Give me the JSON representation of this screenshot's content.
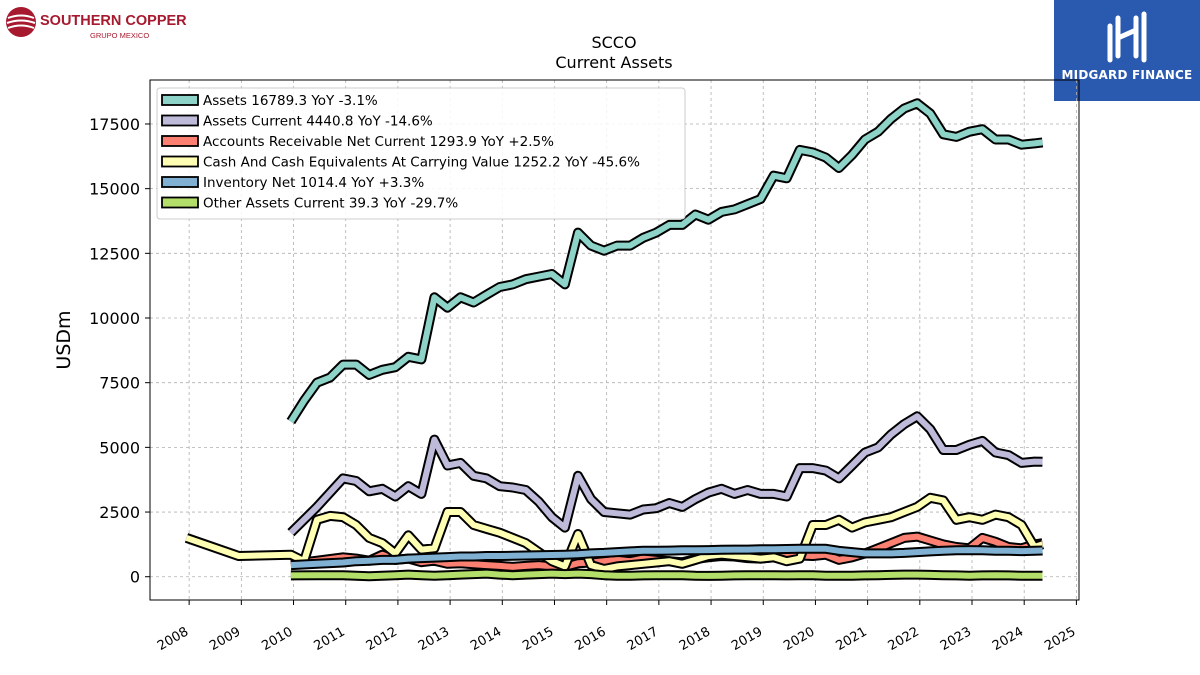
{
  "logos": {
    "left": {
      "name": "SOUTHERN COPPER",
      "sub": "GRUPO MEXICO",
      "color": "#a6192e"
    },
    "right": {
      "name": "MIDGARD FINANCE",
      "bg": "#2a59b0"
    }
  },
  "chart_data": {
    "type": "line",
    "title": "SCCO",
    "subtitle": "Current  Assets",
    "ylabel": "USDm",
    "xlabel": "",
    "xlim": [
      2007.25,
      2025.05
    ],
    "ylim": [
      -900,
      19200
    ],
    "x_ticks": [
      2008,
      2009,
      2010,
      2011,
      2012,
      2013,
      2014,
      2015,
      2016,
      2017,
      2018,
      2019,
      2020,
      2021,
      2022,
      2023,
      2024,
      2025
    ],
    "y_ticks": [
      0,
      2500,
      5000,
      7500,
      10000,
      12500,
      15000,
      17500
    ],
    "grid": true,
    "legend_position": "top-left",
    "series": [
      {
        "name": "Assets",
        "legend": "Assets  16789.3 YoY -3.1%",
        "color": "#8dd3c7",
        "x": [
          2009.95,
          2010.2,
          2010.45,
          2010.7,
          2010.95,
          2011.2,
          2011.45,
          2011.7,
          2011.95,
          2012.2,
          2012.45,
          2012.7,
          2012.95,
          2013.2,
          2013.45,
          2013.7,
          2013.95,
          2014.2,
          2014.45,
          2014.7,
          2014.95,
          2015.2,
          2015.45,
          2015.7,
          2015.95,
          2016.2,
          2016.45,
          2016.7,
          2016.95,
          2017.2,
          2017.45,
          2017.7,
          2017.95,
          2018.2,
          2018.45,
          2018.7,
          2018.95,
          2019.2,
          2019.45,
          2019.7,
          2019.95,
          2020.2,
          2020.45,
          2020.7,
          2020.95,
          2021.2,
          2021.45,
          2021.7,
          2021.95,
          2022.2,
          2022.45,
          2022.7,
          2022.95,
          2023.2,
          2023.45,
          2023.7,
          2023.95,
          2024.2,
          2024.35
        ],
        "y": [
          6000,
          6800,
          7500,
          7700,
          8200,
          8200,
          7800,
          8000,
          8100,
          8500,
          8400,
          10800,
          10400,
          10800,
          10600,
          10900,
          11200,
          11300,
          11500,
          11600,
          11700,
          11300,
          13300,
          12800,
          12600,
          12800,
          12800,
          13100,
          13300,
          13600,
          13600,
          14000,
          13800,
          14100,
          14200,
          14400,
          14600,
          15500,
          15400,
          16500,
          16400,
          16200,
          15800,
          16300,
          16900,
          17200,
          17700,
          18100,
          18300,
          17900,
          17100,
          17000,
          17200,
          17300,
          16900,
          16900,
          16700,
          16750,
          16789
        ]
      },
      {
        "name": "Assets Current",
        "legend": "Assets Current  4440.8 YoY -14.6%",
        "color": "#bebada",
        "x": [
          2009.95,
          2010.45,
          2010.95,
          2011.2,
          2011.45,
          2011.7,
          2011.95,
          2012.2,
          2012.45,
          2012.7,
          2012.95,
          2013.2,
          2013.45,
          2013.7,
          2013.95,
          2014.2,
          2014.45,
          2014.7,
          2014.95,
          2015.2,
          2015.45,
          2015.7,
          2015.95,
          2016.2,
          2016.45,
          2016.7,
          2016.95,
          2017.2,
          2017.45,
          2017.7,
          2017.95,
          2018.2,
          2018.45,
          2018.7,
          2018.95,
          2019.2,
          2019.45,
          2019.7,
          2019.95,
          2020.2,
          2020.45,
          2020.7,
          2020.95,
          2021.2,
          2021.45,
          2021.7,
          2021.95,
          2022.2,
          2022.45,
          2022.7,
          2022.95,
          2023.2,
          2023.45,
          2023.7,
          2023.95,
          2024.2,
          2024.35
        ],
        "y": [
          1700,
          2700,
          3800,
          3700,
          3300,
          3400,
          3100,
          3500,
          3200,
          5300,
          4300,
          4400,
          3900,
          3800,
          3500,
          3450,
          3350,
          2900,
          2300,
          1900,
          3900,
          3000,
          2500,
          2450,
          2400,
          2600,
          2650,
          2850,
          2700,
          3000,
          3250,
          3400,
          3200,
          3350,
          3200,
          3200,
          3100,
          4200,
          4200,
          4100,
          3800,
          4300,
          4800,
          5000,
          5500,
          5900,
          6200,
          5700,
          4900,
          4900,
          5100,
          5250,
          4800,
          4700,
          4400,
          4450,
          4441
        ]
      },
      {
        "name": "Accounts Receivable Net Current",
        "legend": "Accounts Receivable Net Current  1293.9 YoY +2.5%",
        "color": "#fb8072",
        "x": [
          2009.95,
          2010.45,
          2010.95,
          2011.2,
          2011.45,
          2011.7,
          2011.95,
          2012.2,
          2012.45,
          2012.7,
          2012.95,
          2013.2,
          2013.45,
          2013.7,
          2013.95,
          2014.2,
          2014.45,
          2014.7,
          2014.95,
          2015.2,
          2015.45,
          2015.7,
          2015.95,
          2016.2,
          2016.45,
          2016.7,
          2016.95,
          2017.2,
          2017.45,
          2017.7,
          2017.95,
          2018.2,
          2018.45,
          2018.7,
          2018.95,
          2019.2,
          2019.45,
          2019.7,
          2019.95,
          2020.2,
          2020.45,
          2020.7,
          2020.95,
          2021.2,
          2021.45,
          2021.7,
          2021.95,
          2022.2,
          2022.45,
          2022.7,
          2022.95,
          2023.2,
          2023.45,
          2023.7,
          2023.95,
          2024.2,
          2024.35
        ],
        "y": [
          500,
          620,
          750,
          700,
          620,
          850,
          650,
          700,
          560,
          620,
          500,
          520,
          480,
          450,
          420,
          380,
          420,
          450,
          400,
          380,
          520,
          550,
          600,
          650,
          600,
          700,
          650,
          600,
          560,
          680,
          750,
          800,
          780,
          720,
          700,
          750,
          800,
          820,
          800,
          850,
          650,
          750,
          900,
          1100,
          1300,
          1500,
          1550,
          1400,
          1250,
          1150,
          1100,
          1500,
          1350,
          1150,
          1100,
          1250,
          1294
        ]
      },
      {
        "name": "Cash And Cash Equivalents At Carrying Value",
        "legend": "Cash And Cash Equivalents At Carrying Value  1252.2 YoY -45.6%",
        "color": "#ffffb3",
        "x": [
          2007.95,
          2008.95,
          2009.95,
          2010.2,
          2010.45,
          2010.7,
          2010.95,
          2011.2,
          2011.45,
          2011.7,
          2011.95,
          2012.2,
          2012.45,
          2012.7,
          2012.95,
          2013.2,
          2013.45,
          2013.7,
          2013.95,
          2014.2,
          2014.45,
          2014.7,
          2014.95,
          2015.2,
          2015.45,
          2015.7,
          2015.95,
          2016.2,
          2016.45,
          2016.7,
          2016.95,
          2017.2,
          2017.45,
          2017.7,
          2017.95,
          2018.2,
          2018.45,
          2018.7,
          2018.95,
          2019.2,
          2019.45,
          2019.7,
          2019.95,
          2020.2,
          2020.45,
          2020.7,
          2020.95,
          2021.2,
          2021.45,
          2021.7,
          2021.95,
          2022.2,
          2022.45,
          2022.7,
          2022.95,
          2023.2,
          2023.45,
          2023.7,
          2023.95,
          2024.2,
          2024.35
        ],
        "y": [
          1500,
          800,
          850,
          600,
          2200,
          2350,
          2300,
          2000,
          1500,
          1300,
          900,
          1600,
          1050,
          1100,
          2500,
          2500,
          2000,
          1850,
          1700,
          1500,
          1300,
          950,
          600,
          400,
          1650,
          450,
          300,
          400,
          450,
          500,
          550,
          600,
          500,
          650,
          800,
          850,
          800,
          750,
          700,
          750,
          600,
          700,
          2000,
          2000,
          2200,
          1900,
          2100,
          2200,
          2300,
          2500,
          2700,
          3050,
          2950,
          2200,
          2300,
          2200,
          2400,
          2300,
          2000,
          1150,
          1252
        ]
      },
      {
        "name": "Inventory Net",
        "legend": "Inventory Net  1014.4 YoY +3.3%",
        "color": "#80b1d3",
        "x": [
          2009.95,
          2010.45,
          2010.95,
          2011.2,
          2011.45,
          2011.7,
          2011.95,
          2012.2,
          2012.45,
          2012.7,
          2012.95,
          2013.2,
          2013.45,
          2013.7,
          2013.95,
          2014.2,
          2014.45,
          2014.7,
          2014.95,
          2015.2,
          2015.45,
          2015.7,
          2015.95,
          2016.2,
          2016.45,
          2016.7,
          2016.95,
          2017.2,
          2017.45,
          2017.7,
          2017.95,
          2018.2,
          2018.45,
          2018.7,
          2018.95,
          2019.2,
          2019.45,
          2019.7,
          2019.95,
          2020.2,
          2020.45,
          2020.7,
          2020.95,
          2021.2,
          2021.45,
          2021.7,
          2021.95,
          2022.2,
          2022.45,
          2022.7,
          2022.95,
          2023.2,
          2023.45,
          2023.7,
          2023.95,
          2024.2,
          2024.35
        ],
        "y": [
          450,
          500,
          550,
          600,
          620,
          650,
          650,
          700,
          720,
          740,
          760,
          780,
          780,
          800,
          800,
          810,
          820,
          830,
          840,
          850,
          870,
          900,
          920,
          950,
          980,
          1000,
          1000,
          1010,
          1020,
          1020,
          1030,
          1040,
          1050,
          1050,
          1060,
          1060,
          1070,
          1080,
          1080,
          1080,
          1000,
          950,
          900,
          900,
          900,
          920,
          950,
          980,
          1000,
          1020,
          1030,
          1020,
          1000,
          1000,
          990,
          1000,
          1014
        ]
      },
      {
        "name": "Other Assets Current",
        "legend": "Other Assets Current  39.3 YoY -29.7%",
        "color": "#b3de69",
        "x": [
          2009.95,
          2010.45,
          2010.95,
          2011.2,
          2011.45,
          2011.7,
          2011.95,
          2012.2,
          2012.45,
          2012.7,
          2012.95,
          2013.2,
          2013.45,
          2013.7,
          2013.95,
          2014.2,
          2014.45,
          2014.7,
          2014.95,
          2015.2,
          2015.45,
          2015.7,
          2015.95,
          2016.2,
          2016.45,
          2016.7,
          2016.95,
          2017.2,
          2017.45,
          2017.7,
          2017.95,
          2018.2,
          2018.45,
          2018.7,
          2018.95,
          2019.2,
          2019.45,
          2019.7,
          2019.95,
          2020.2,
          2020.45,
          2020.7,
          2020.95,
          2021.2,
          2021.45,
          2021.7,
          2021.95,
          2022.2,
          2022.45,
          2022.7,
          2022.95,
          2023.2,
          2023.45,
          2023.7,
          2023.95,
          2024.2,
          2024.35
        ],
        "y": [
          50,
          60,
          60,
          40,
          20,
          40,
          60,
          80,
          60,
          40,
          60,
          80,
          100,
          120,
          80,
          60,
          80,
          100,
          120,
          100,
          120,
          100,
          60,
          40,
          40,
          50,
          60,
          60,
          60,
          40,
          30,
          40,
          50,
          60,
          60,
          60,
          50,
          60,
          60,
          40,
          40,
          40,
          50,
          60,
          70,
          80,
          80,
          70,
          60,
          50,
          40,
          50,
          60,
          50,
          40,
          40,
          39
        ]
      }
    ]
  }
}
